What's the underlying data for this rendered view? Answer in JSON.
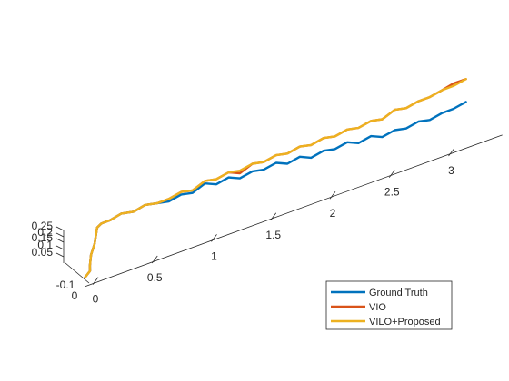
{
  "chart_data": {
    "type": "line",
    "title": "",
    "xlabel": "",
    "ylabel": "",
    "zlabel": "",
    "grid": false,
    "legend_position": "bottom-right",
    "x_ticks": [
      "0",
      "0.5",
      "1",
      "1.5",
      "2",
      "2.5",
      "3"
    ],
    "y_ticks": [
      "-0.1",
      "0"
    ],
    "z_ticks": [
      "0.05",
      "0.1",
      "0.15",
      "0.2",
      "0.25"
    ],
    "xlim": [
      0,
      3.3
    ],
    "ylim": [
      -0.1,
      0.05
    ],
    "zlim": [
      0,
      0.25
    ],
    "series": [
      {
        "name": "Ground Truth",
        "color": "#0072BD",
        "points": [
          [
            0.0,
            0.02,
            0.02
          ],
          [
            0.02,
            -0.02,
            0.04
          ],
          [
            0.03,
            0.0,
            0.06
          ],
          [
            0.05,
            0.02,
            0.1
          ],
          [
            0.07,
            0.0,
            0.14
          ],
          [
            0.08,
            -0.02,
            0.2
          ],
          [
            0.12,
            -0.01,
            0.21
          ],
          [
            0.2,
            0.0,
            0.21
          ],
          [
            0.3,
            0.01,
            0.22
          ],
          [
            0.4,
            0.0,
            0.21
          ],
          [
            0.5,
            0.01,
            0.22
          ],
          [
            0.6,
            0.0,
            0.21
          ],
          [
            0.7,
            0.01,
            0.2
          ],
          [
            0.8,
            0.0,
            0.21
          ],
          [
            0.9,
            0.01,
            0.2
          ],
          [
            1.0,
            0.0,
            0.22
          ],
          [
            1.1,
            0.01,
            0.2
          ],
          [
            1.2,
            0.0,
            0.21
          ],
          [
            1.3,
            0.01,
            0.19
          ],
          [
            1.4,
            0.0,
            0.2
          ],
          [
            1.5,
            0.01,
            0.19
          ],
          [
            1.6,
            0.0,
            0.2
          ],
          [
            1.7,
            0.01,
            0.18
          ],
          [
            1.8,
            0.0,
            0.19
          ],
          [
            1.9,
            0.01,
            0.17
          ],
          [
            2.0,
            0.0,
            0.18
          ],
          [
            2.1,
            0.01,
            0.17
          ],
          [
            2.2,
            0.0,
            0.18
          ],
          [
            2.3,
            0.01,
            0.16
          ],
          [
            2.4,
            0.0,
            0.17
          ],
          [
            2.5,
            0.01,
            0.15
          ],
          [
            2.6,
            0.0,
            0.16
          ],
          [
            2.7,
            0.01,
            0.15
          ],
          [
            2.8,
            0.0,
            0.16
          ],
          [
            2.9,
            0.01,
            0.15
          ],
          [
            3.0,
            0.0,
            0.16
          ],
          [
            3.1,
            0.01,
            0.16
          ],
          [
            3.2,
            0.0,
            0.17
          ]
        ]
      },
      {
        "name": "VIO",
        "color": "#D95319",
        "points": [
          [
            0.0,
            0.02,
            0.02
          ],
          [
            0.02,
            -0.02,
            0.04
          ],
          [
            0.03,
            0.0,
            0.06
          ],
          [
            0.05,
            0.02,
            0.1
          ],
          [
            0.07,
            0.0,
            0.14
          ],
          [
            0.08,
            -0.02,
            0.2
          ],
          [
            0.12,
            -0.01,
            0.21
          ],
          [
            0.2,
            0.0,
            0.21
          ],
          [
            0.3,
            0.01,
            0.22
          ],
          [
            0.4,
            0.0,
            0.21
          ],
          [
            0.5,
            0.01,
            0.22
          ],
          [
            0.6,
            0.0,
            0.21
          ],
          [
            0.7,
            0.01,
            0.21
          ],
          [
            0.8,
            0.0,
            0.22
          ],
          [
            0.9,
            0.01,
            0.21
          ],
          [
            1.0,
            0.0,
            0.23
          ],
          [
            1.1,
            0.01,
            0.22
          ],
          [
            1.2,
            0.0,
            0.23
          ],
          [
            1.3,
            0.01,
            0.21
          ],
          [
            1.4,
            0.0,
            0.23
          ],
          [
            1.5,
            0.01,
            0.22
          ],
          [
            1.6,
            0.0,
            0.23
          ],
          [
            1.7,
            0.01,
            0.22
          ],
          [
            1.8,
            0.0,
            0.23
          ],
          [
            1.9,
            0.01,
            0.22
          ],
          [
            2.0,
            0.0,
            0.23
          ],
          [
            2.1,
            0.01,
            0.22
          ],
          [
            2.2,
            0.0,
            0.23
          ],
          [
            2.3,
            0.01,
            0.22
          ],
          [
            2.4,
            0.0,
            0.23
          ],
          [
            2.5,
            0.01,
            0.22
          ],
          [
            2.6,
            0.0,
            0.24
          ],
          [
            2.7,
            0.01,
            0.23
          ],
          [
            2.8,
            0.0,
            0.24
          ],
          [
            2.9,
            0.01,
            0.24
          ],
          [
            3.0,
            0.0,
            0.25
          ],
          [
            3.1,
            0.01,
            0.26
          ],
          [
            3.2,
            0.0,
            0.26
          ]
        ]
      },
      {
        "name": "VILO+Proposed",
        "color": "#EDB120",
        "points": [
          [
            0.0,
            0.02,
            0.02
          ],
          [
            0.02,
            -0.02,
            0.04
          ],
          [
            0.03,
            0.0,
            0.06
          ],
          [
            0.05,
            0.02,
            0.1
          ],
          [
            0.07,
            0.0,
            0.14
          ],
          [
            0.08,
            -0.02,
            0.2
          ],
          [
            0.12,
            -0.01,
            0.21
          ],
          [
            0.2,
            0.0,
            0.21
          ],
          [
            0.3,
            0.01,
            0.22
          ],
          [
            0.4,
            0.0,
            0.21
          ],
          [
            0.5,
            0.01,
            0.22
          ],
          [
            0.6,
            0.0,
            0.21
          ],
          [
            0.7,
            0.01,
            0.21
          ],
          [
            0.8,
            0.0,
            0.22
          ],
          [
            0.9,
            0.01,
            0.21
          ],
          [
            1.0,
            0.0,
            0.23
          ],
          [
            1.1,
            0.01,
            0.22
          ],
          [
            1.2,
            0.0,
            0.23
          ],
          [
            1.3,
            0.01,
            0.22
          ],
          [
            1.4,
            0.0,
            0.23
          ],
          [
            1.5,
            0.01,
            0.22
          ],
          [
            1.6,
            0.0,
            0.23
          ],
          [
            1.7,
            0.01,
            0.22
          ],
          [
            1.8,
            0.0,
            0.23
          ],
          [
            1.9,
            0.01,
            0.22
          ],
          [
            2.0,
            0.0,
            0.23
          ],
          [
            2.1,
            0.01,
            0.22
          ],
          [
            2.2,
            0.0,
            0.23
          ],
          [
            2.3,
            0.01,
            0.22
          ],
          [
            2.4,
            0.0,
            0.23
          ],
          [
            2.5,
            0.01,
            0.22
          ],
          [
            2.6,
            0.0,
            0.24
          ],
          [
            2.7,
            0.01,
            0.23
          ],
          [
            2.8,
            0.0,
            0.24
          ],
          [
            2.9,
            0.01,
            0.24
          ],
          [
            3.0,
            0.0,
            0.25
          ],
          [
            3.1,
            0.01,
            0.25
          ],
          [
            3.2,
            0.0,
            0.26
          ]
        ]
      }
    ]
  }
}
